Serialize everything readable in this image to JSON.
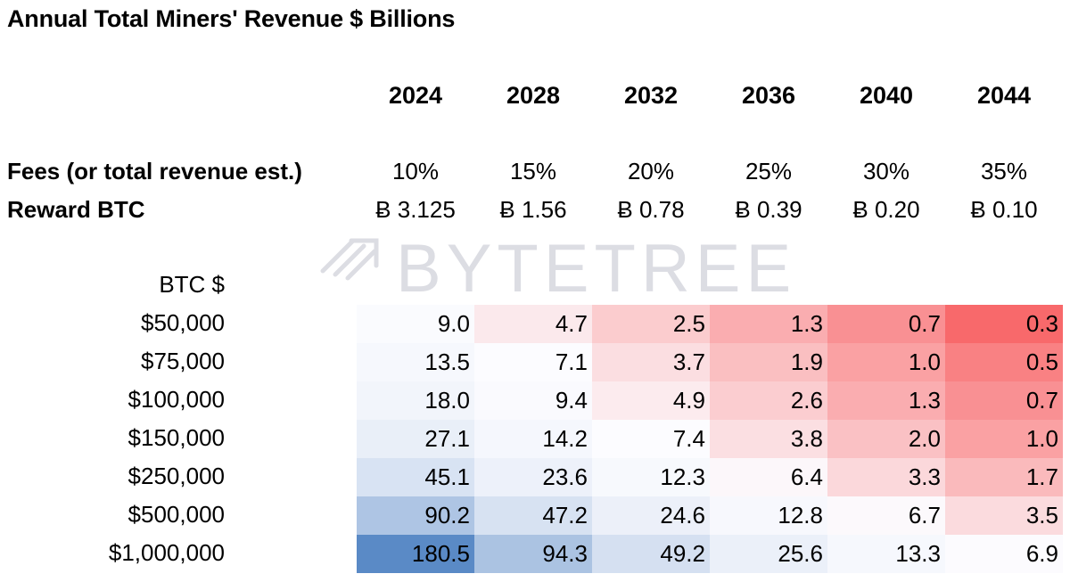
{
  "chart_data": {
    "type": "table",
    "title": "Annual Total Miners' Revenue $ Billions",
    "years": [
      "2024",
      "2028",
      "2032",
      "2036",
      "2040",
      "2044"
    ],
    "fees_label": "Fees (or total revenue est.)",
    "fees": [
      "10%",
      "15%",
      "20%",
      "25%",
      "30%",
      "35%"
    ],
    "reward_label": "Reward BTC",
    "rewards": [
      "Ƀ 3.125",
      "Ƀ 1.56",
      "Ƀ 0.78",
      "Ƀ 0.39",
      "Ƀ 0.20",
      "Ƀ 0.10"
    ],
    "btc_price_header": "BTC  $",
    "btc_prices": [
      "$50,000",
      "$75,000",
      "$100,000",
      "$150,000",
      "$250,000",
      "$500,000",
      "$1,000,000"
    ],
    "values": [
      [
        "9.0",
        "4.7",
        "2.5",
        "1.3",
        "0.7",
        "0.3"
      ],
      [
        "13.5",
        "7.1",
        "3.7",
        "1.9",
        "1.0",
        "0.5"
      ],
      [
        "18.0",
        "9.4",
        "4.9",
        "2.6",
        "1.3",
        "0.7"
      ],
      [
        "27.1",
        "14.2",
        "7.4",
        "3.8",
        "2.0",
        "1.0"
      ],
      [
        "45.1",
        "23.6",
        "12.3",
        "6.4",
        "3.3",
        "1.7"
      ],
      [
        "90.2",
        "47.2",
        "24.6",
        "12.8",
        "6.7",
        "3.5"
      ],
      [
        "180.5",
        "94.3",
        "49.2",
        "25.6",
        "13.3",
        "6.9"
      ]
    ],
    "color_scale": {
      "low": "#f8696b",
      "mid": "#fcfcff",
      "high": "#5a8ac6",
      "mid_value": 7.1
    }
  },
  "watermark": {
    "text": "BYTETREE",
    "icon": "bytetree-arrows-icon"
  }
}
